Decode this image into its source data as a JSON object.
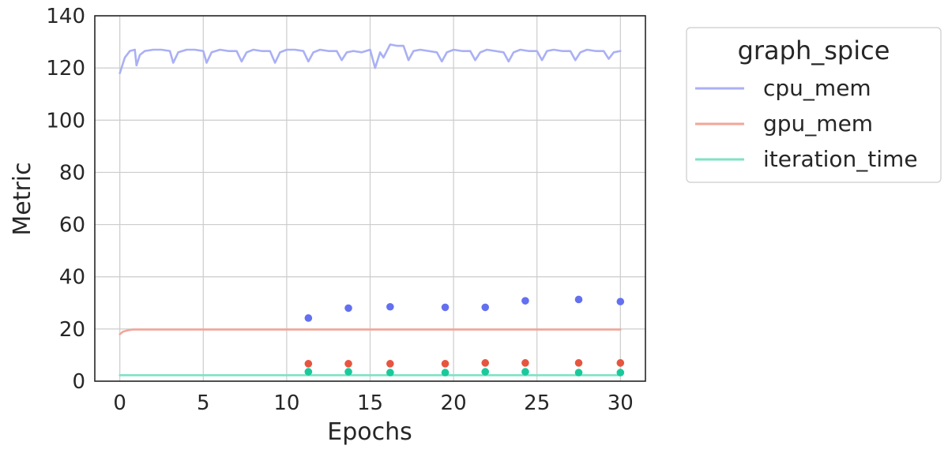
{
  "chart_data": {
    "type": "line",
    "xlabel": "Epochs",
    "ylabel": "Metric",
    "xlim": [
      -1.5,
      31.5
    ],
    "ylim": [
      0,
      140
    ],
    "x_ticks": [
      0,
      5,
      10,
      15,
      20,
      25,
      30
    ],
    "y_ticks": [
      0,
      20,
      40,
      60,
      80,
      100,
      120,
      140
    ],
    "grid": true,
    "legend": {
      "title": "graph_spice",
      "placement": "outside-right",
      "entries": [
        "cpu_mem",
        "gpu_mem",
        "iteration_time"
      ]
    },
    "series": [
      {
        "name": "cpu_mem",
        "color": "#aab0f5",
        "kind": "line",
        "x": [
          0,
          0.3,
          0.6,
          0.9,
          1.0,
          1.2,
          1.5,
          2.0,
          2.5,
          3.0,
          3.2,
          3.5,
          4.0,
          4.5,
          5.0,
          5.2,
          5.5,
          6.0,
          6.5,
          7.0,
          7.3,
          7.6,
          8.0,
          8.5,
          9.0,
          9.3,
          9.6,
          10.0,
          10.5,
          11.0,
          11.3,
          11.6,
          12.0,
          12.5,
          13.0,
          13.3,
          13.6,
          14.0,
          14.5,
          15.0,
          15.3,
          15.6,
          15.8,
          16.2,
          16.6,
          17.0,
          17.3,
          17.6,
          18.0,
          18.5,
          19.0,
          19.3,
          19.6,
          20.0,
          20.5,
          21.0,
          21.3,
          21.6,
          22.0,
          22.5,
          23.0,
          23.3,
          23.6,
          24.0,
          24.5,
          25.0,
          25.3,
          25.6,
          26.0,
          26.5,
          27.0,
          27.3,
          27.6,
          28.0,
          28.5,
          29.0,
          29.3,
          29.6,
          30.0
        ],
        "y": [
          118,
          124,
          126.5,
          127,
          121,
          125,
          126.5,
          127,
          127,
          126.5,
          122,
          126,
          127,
          127,
          126.5,
          122,
          126,
          127,
          126.5,
          126.5,
          122.5,
          126,
          127,
          126.5,
          126.5,
          122,
          126,
          127,
          127,
          126.5,
          122.5,
          126,
          127,
          126.5,
          126.5,
          123,
          126,
          126.5,
          126,
          127,
          120,
          126,
          124,
          129,
          128.5,
          128.5,
          123,
          126.5,
          127,
          126.5,
          126,
          122.5,
          126,
          127,
          126.5,
          126.5,
          123,
          126,
          127,
          126.5,
          126,
          122.5,
          126,
          127,
          126.5,
          126.5,
          123,
          126.5,
          127,
          126.5,
          126.5,
          123,
          126,
          127,
          126.5,
          126.5,
          123.5,
          126,
          126.5
        ]
      },
      {
        "name": "gpu_mem",
        "color": "#f3a598",
        "kind": "line",
        "x": [
          0,
          0.2,
          0.5,
          0.8,
          1.5,
          30
        ],
        "y": [
          18,
          19,
          19.5,
          19.8,
          19.8,
          19.8
        ]
      },
      {
        "name": "iteration_time",
        "color": "#7de2c5",
        "kind": "line",
        "x": [
          0,
          30
        ],
        "y": [
          2.3,
          2.3
        ]
      }
    ],
    "scatter_series": [
      {
        "color": "#6370f0",
        "x": [
          11.3,
          13.7,
          16.2,
          19.5,
          21.9,
          24.3,
          27.5,
          30
        ],
        "y": [
          24.2,
          28,
          28.5,
          28.3,
          28.3,
          30.8,
          31.3,
          30.5
        ]
      },
      {
        "color": "#e65540",
        "x": [
          11.3,
          13.7,
          16.2,
          19.5,
          21.9,
          24.3,
          27.5,
          30
        ],
        "y": [
          6.7,
          6.7,
          6.7,
          6.7,
          7,
          7,
          7,
          7
        ]
      },
      {
        "color": "#1ac99b",
        "x": [
          11.3,
          13.7,
          16.2,
          19.5,
          21.9,
          24.3,
          27.5,
          30
        ],
        "y": [
          3.6,
          3.6,
          3.3,
          3.3,
          3.6,
          3.6,
          3.3,
          3.3
        ]
      }
    ]
  }
}
